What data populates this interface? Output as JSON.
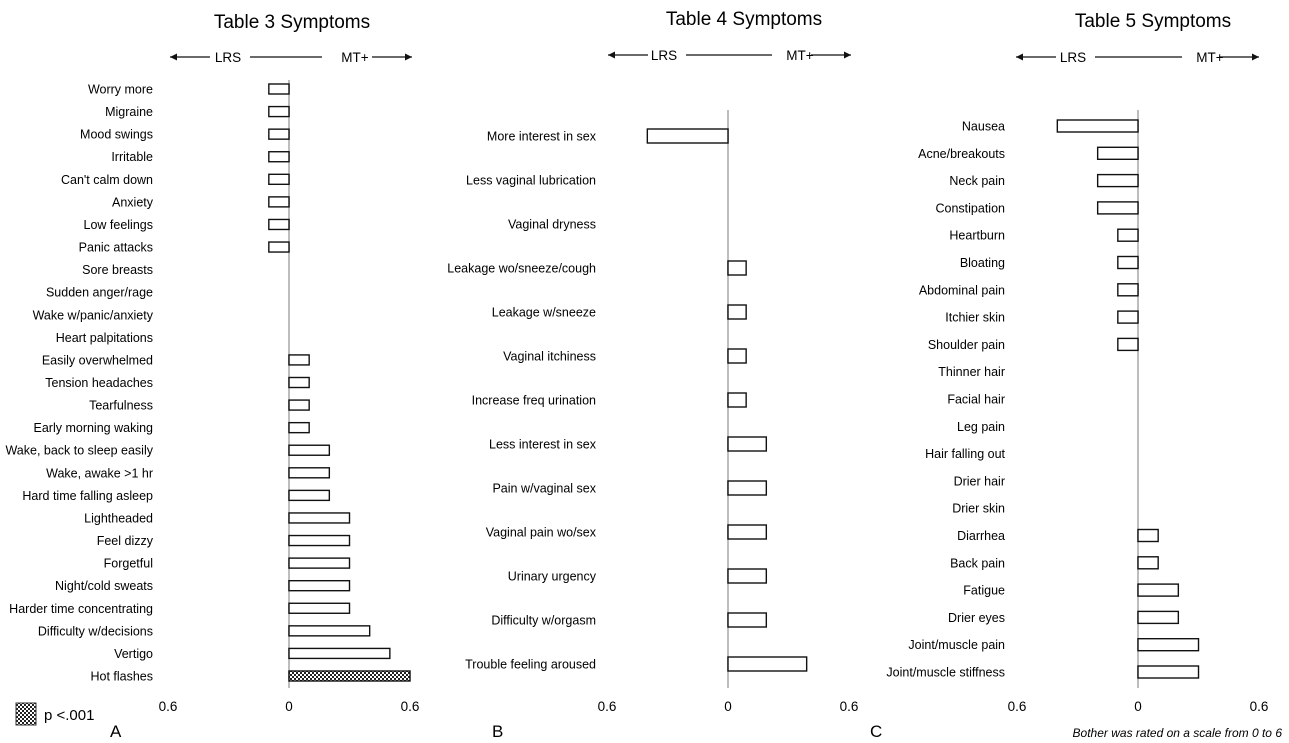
{
  "chart_data": [
    {
      "type": "bar",
      "orientation": "horizontal",
      "title": "Table 3 Symptoms",
      "panel_label": "A",
      "direction_left": "LRS",
      "direction_right": "MT+",
      "xlim": [
        -0.6,
        0.6
      ],
      "tick_labels": [
        "0.6",
        "0",
        "0.6"
      ],
      "grid": false,
      "categories": [
        "Worry more",
        "Migraine",
        "Mood swings",
        "Irritable",
        "Can't calm down",
        "Anxiety",
        "Low feelings",
        "Panic attacks",
        "Sore breasts",
        "Sudden anger/rage",
        "Wake w/panic/anxiety",
        "Heart palpitations",
        "Easily overwhelmed",
        "Tension headaches",
        "Tearfulness",
        "Early morning waking",
        "Wake, back to sleep easily",
        "Wake, awake >1 hr",
        "Hard time falling asleep",
        "Lightheaded",
        "Feel dizzy",
        "Forgetful",
        "Night/cold sweats",
        "Harder time concentrating",
        "Difficulty w/decisions",
        "Vertigo",
        "Hot flashes"
      ],
      "values": [
        -0.1,
        -0.1,
        -0.1,
        -0.1,
        -0.1,
        -0.1,
        -0.1,
        -0.1,
        0,
        0,
        0,
        0,
        0.1,
        0.1,
        0.1,
        0.1,
        0.2,
        0.2,
        0.2,
        0.3,
        0.3,
        0.3,
        0.3,
        0.3,
        0.4,
        0.5,
        0.6
      ],
      "significant": [
        "Hot flashes"
      ]
    },
    {
      "type": "bar",
      "orientation": "horizontal",
      "title": "Table 4 Symptoms",
      "panel_label": "B",
      "direction_left": "LRS",
      "direction_right": "MT+",
      "xlim": [
        -0.6,
        0.6
      ],
      "tick_labels": [
        "0.6",
        "0",
        "0.6"
      ],
      "grid": false,
      "categories": [
        "More interest in sex",
        "Less vaginal lubrication",
        "Vaginal dryness",
        "Leakage wo/sneeze/cough",
        "Leakage w/sneeze",
        "Vaginal itchiness",
        "Increase freq urination",
        "Less interest in sex",
        "Pain w/vaginal sex",
        "Vaginal pain wo/sex",
        "Urinary urgency",
        "Difficulty w/orgasm",
        "Trouble feeling aroused"
      ],
      "values": [
        -0.4,
        0,
        0,
        0.09,
        0.09,
        0.09,
        0.09,
        0.19,
        0.19,
        0.19,
        0.19,
        0.19,
        0.39
      ],
      "significant": []
    },
    {
      "type": "bar",
      "orientation": "horizontal",
      "title": "Table 5 Symptoms",
      "panel_label": "C",
      "direction_left": "LRS",
      "direction_right": "MT+",
      "xlim": [
        -0.6,
        0.6
      ],
      "tick_labels": [
        "0.6",
        "0",
        "0.6"
      ],
      "grid": false,
      "categories": [
        "Nausea",
        "Acne/breakouts",
        "Neck pain",
        "Constipation",
        "Heartburn",
        "Bloating",
        "Abdominal pain",
        "Itchier skin",
        "Shoulder pain",
        "Thinner hair",
        "Facial hair",
        "Leg pain",
        "Hair falling out",
        "Drier hair",
        "Drier skin",
        "Diarrhea",
        "Back pain",
        "Fatigue",
        "Drier eyes",
        "Joint/muscle pain",
        "Joint/muscle stiffness"
      ],
      "values": [
        -0.4,
        -0.2,
        -0.2,
        -0.2,
        -0.1,
        -0.1,
        -0.1,
        -0.1,
        -0.1,
        0,
        0,
        0,
        0,
        0,
        0,
        0.1,
        0.1,
        0.2,
        0.2,
        0.3,
        0.3
      ],
      "significant": []
    }
  ],
  "legend": {
    "label": "p <.001"
  },
  "footnote": "Bother was rated on a scale from 0 to 6"
}
